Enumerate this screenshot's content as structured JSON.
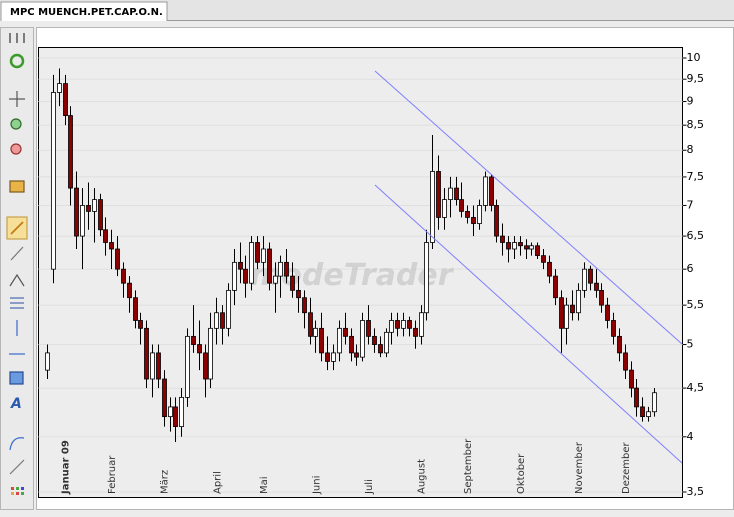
{
  "tab": {
    "title": "MPC MUENCH.PET.CAP.O.N."
  },
  "watermark": "modeTrader",
  "chart_data": {
    "type": "candlestick",
    "categories": [
      null,
      null,
      null,
      "Januar 09",
      null,
      null,
      null,
      null,
      null,
      null,
      null,
      "Februar",
      null,
      null,
      null,
      null,
      null,
      null,
      null,
      null,
      "März",
      null,
      null,
      null,
      null,
      null,
      null,
      null,
      null,
      "April",
      null,
      null,
      null,
      null,
      null,
      null,
      null,
      "Mai",
      null,
      null,
      null,
      null,
      null,
      null,
      null,
      null,
      "Juni",
      null,
      null,
      null,
      null,
      null,
      null,
      null,
      null,
      "Juli",
      null,
      null,
      null,
      null,
      null,
      null,
      null,
      null,
      "August",
      null,
      null,
      null,
      null,
      null,
      null,
      null,
      "September",
      null,
      null,
      null,
      null,
      null,
      null,
      null,
      null,
      "Oktober",
      null,
      null,
      null,
      null,
      null,
      null,
      null,
      null,
      null,
      "November",
      null,
      null,
      null,
      null,
      null,
      null,
      null,
      "Dezember",
      null,
      null,
      null,
      null,
      null
    ],
    "open": [
      4.7,
      6.0,
      9.2,
      9.4,
      8.7,
      7.3,
      6.5,
      7.0,
      6.9,
      7.1,
      6.6,
      6.4,
      6.3,
      6.0,
      5.8,
      5.6,
      5.3,
      5.2,
      4.6,
      4.9,
      4.6,
      4.2,
      4.3,
      4.1,
      4.4,
      5.1,
      5.0,
      4.9,
      4.6,
      5.2,
      5.4,
      5.2,
      5.7,
      6.1,
      6.0,
      5.8,
      6.4,
      6.1,
      6.3,
      5.8,
      5.9,
      6.1,
      5.9,
      5.7,
      5.6,
      5.4,
      5.1,
      5.2,
      4.9,
      4.8,
      4.9,
      5.2,
      5.1,
      4.9,
      4.85,
      5.3,
      5.1,
      5.0,
      4.9,
      5.15,
      5.3,
      5.2,
      5.3,
      5.2,
      5.1,
      5.4,
      6.4,
      7.6,
      6.8,
      7.1,
      7.3,
      7.1,
      6.9,
      6.8,
      6.7,
      7.0,
      7.5,
      7.0,
      6.5,
      6.4,
      6.3,
      6.4,
      6.35,
      6.3,
      6.35,
      6.2,
      6.1,
      5.9,
      5.6,
      5.2,
      5.5,
      5.4,
      5.7,
      6.0,
      5.8,
      5.7,
      5.5,
      5.3,
      5.1,
      4.9,
      4.7,
      4.5,
      4.3,
      4.2,
      4.25
    ],
    "high": [
      5.0,
      9.6,
      9.75,
      9.6,
      8.9,
      7.6,
      7.3,
      7.4,
      7.3,
      7.2,
      6.8,
      6.6,
      6.5,
      6.1,
      5.9,
      5.7,
      5.4,
      5.3,
      5.0,
      5.0,
      4.7,
      4.4,
      4.4,
      4.5,
      5.2,
      5.5,
      5.3,
      5.0,
      5.4,
      5.6,
      5.5,
      5.8,
      6.3,
      6.4,
      6.2,
      6.5,
      6.5,
      6.5,
      6.4,
      6.1,
      6.2,
      6.3,
      6.1,
      5.9,
      5.7,
      5.6,
      5.3,
      5.4,
      5.1,
      5.0,
      5.3,
      5.4,
      5.2,
      5.0,
      5.4,
      5.5,
      5.2,
      5.1,
      5.2,
      5.4,
      5.4,
      5.4,
      5.35,
      5.3,
      5.5,
      6.6,
      8.3,
      7.9,
      7.3,
      7.5,
      7.5,
      7.4,
      7.0,
      7.0,
      7.1,
      7.6,
      7.55,
      7.1,
      6.7,
      6.5,
      6.5,
      6.5,
      6.45,
      6.4,
      6.4,
      6.3,
      6.2,
      6.0,
      5.7,
      5.6,
      5.7,
      5.8,
      6.1,
      6.05,
      6.0,
      5.8,
      5.6,
      5.4,
      5.2,
      5.0,
      4.8,
      4.6,
      4.4,
      4.3,
      4.5
    ],
    "low": [
      4.6,
      5.8,
      8.9,
      8.5,
      7.0,
      6.3,
      6.0,
      6.6,
      6.4,
      6.5,
      6.2,
      6.0,
      5.9,
      5.6,
      5.4,
      5.2,
      5.0,
      4.5,
      4.4,
      4.5,
      4.1,
      4.05,
      3.95,
      4.0,
      4.3,
      4.9,
      4.7,
      4.4,
      4.5,
      5.0,
      5.0,
      5.1,
      5.5,
      5.8,
      5.6,
      5.7,
      6.0,
      5.9,
      5.7,
      5.4,
      5.6,
      5.8,
      5.6,
      5.4,
      5.2,
      5.0,
      4.9,
      4.8,
      4.7,
      4.7,
      4.8,
      5.0,
      4.8,
      4.75,
      4.8,
      5.0,
      4.9,
      4.85,
      4.85,
      5.0,
      5.1,
      5.1,
      5.1,
      4.95,
      5.0,
      5.3,
      6.3,
      6.6,
      6.6,
      6.8,
      7.0,
      6.8,
      6.7,
      6.5,
      6.6,
      6.9,
      6.9,
      6.4,
      6.2,
      6.1,
      6.15,
      6.2,
      6.15,
      6.2,
      6.15,
      6.0,
      5.8,
      5.5,
      4.9,
      5.0,
      5.3,
      5.3,
      5.6,
      5.7,
      5.6,
      5.4,
      5.2,
      5.0,
      4.8,
      4.6,
      4.4,
      4.2,
      4.15,
      4.15,
      4.2
    ],
    "close": [
      4.9,
      9.2,
      9.4,
      8.7,
      7.3,
      6.5,
      7.0,
      6.9,
      7.1,
      6.6,
      6.4,
      6.3,
      6.0,
      5.8,
      5.6,
      5.3,
      5.2,
      4.6,
      4.9,
      4.6,
      4.2,
      4.3,
      4.1,
      4.4,
      5.1,
      5.0,
      4.9,
      4.6,
      5.2,
      5.4,
      5.2,
      5.7,
      6.1,
      6.0,
      5.8,
      6.4,
      6.1,
      6.3,
      5.8,
      5.9,
      6.1,
      5.9,
      5.7,
      5.6,
      5.4,
      5.1,
      5.2,
      4.9,
      4.8,
      4.9,
      5.2,
      5.1,
      4.9,
      4.85,
      5.3,
      5.1,
      5.0,
      4.9,
      5.15,
      5.3,
      5.2,
      5.3,
      5.2,
      5.1,
      5.4,
      6.4,
      7.6,
      6.8,
      7.1,
      7.3,
      7.1,
      6.9,
      6.8,
      6.7,
      7.0,
      7.5,
      7.0,
      6.5,
      6.4,
      6.3,
      6.4,
      6.35,
      6.3,
      6.35,
      6.2,
      6.1,
      5.9,
      5.6,
      5.2,
      5.5,
      5.4,
      5.7,
      6.0,
      5.8,
      5.7,
      5.5,
      5.3,
      5.1,
      4.9,
      4.7,
      4.5,
      4.3,
      4.2,
      4.25,
      4.45
    ],
    "up_color": "#ffffff",
    "down_color": "#8b0000",
    "ylim": [
      3.5,
      10
    ],
    "log_scale": true,
    "grid": true,
    "yticks": [
      {
        "value": 3.5,
        "label": "3,5"
      },
      4,
      {
        "value": 4.5,
        "label": "4,5"
      },
      5,
      {
        "value": 5.5,
        "label": "5,5"
      },
      6,
      {
        "value": 6.5,
        "label": "6,5"
      },
      7,
      {
        "value": 7.5,
        "label": "7,5"
      },
      8,
      {
        "value": 8.5,
        "label": "8,5"
      },
      9,
      {
        "value": 9.5,
        "label": "9,5"
      },
      10
    ]
  }
}
